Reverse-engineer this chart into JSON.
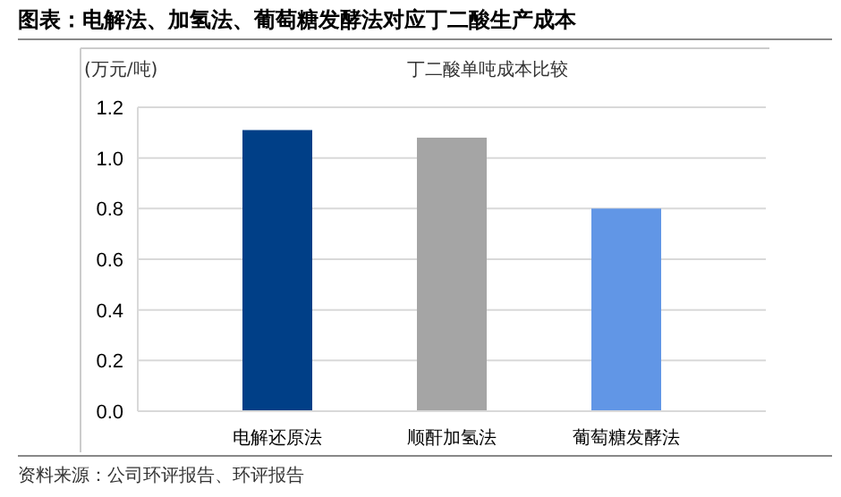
{
  "chart_data": {
    "type": "bar",
    "title": "图表：电解法、加氢法、葡萄糖发酵法对应丁二酸生产成本",
    "subtitle": "丁二酸单吨成本比较",
    "ylabel": "(万元/吨)",
    "categories": [
      "电解还原法",
      "顺酐加氢法",
      "葡萄糖发酵法"
    ],
    "values": [
      1.11,
      1.08,
      0.8
    ],
    "colors": [
      "#003f87",
      "#a5a5a5",
      "#6196e6"
    ],
    "ylim": [
      0,
      1.2
    ],
    "yticks": [
      {
        "value": 0,
        "label": "0.0"
      },
      {
        "value": 0.2,
        "label": "0.2"
      },
      {
        "value": 0.4,
        "label": "0.4"
      },
      {
        "value": 0.6,
        "label": "0.6"
      },
      {
        "value": 0.8,
        "label": "0.8"
      },
      {
        "value": 1,
        "label": "1.0"
      },
      {
        "value": 1.2,
        "label": "1.2"
      }
    ],
    "grid": "y",
    "annotations": [
      "资料来源：公司环评报告、环评报告"
    ]
  }
}
